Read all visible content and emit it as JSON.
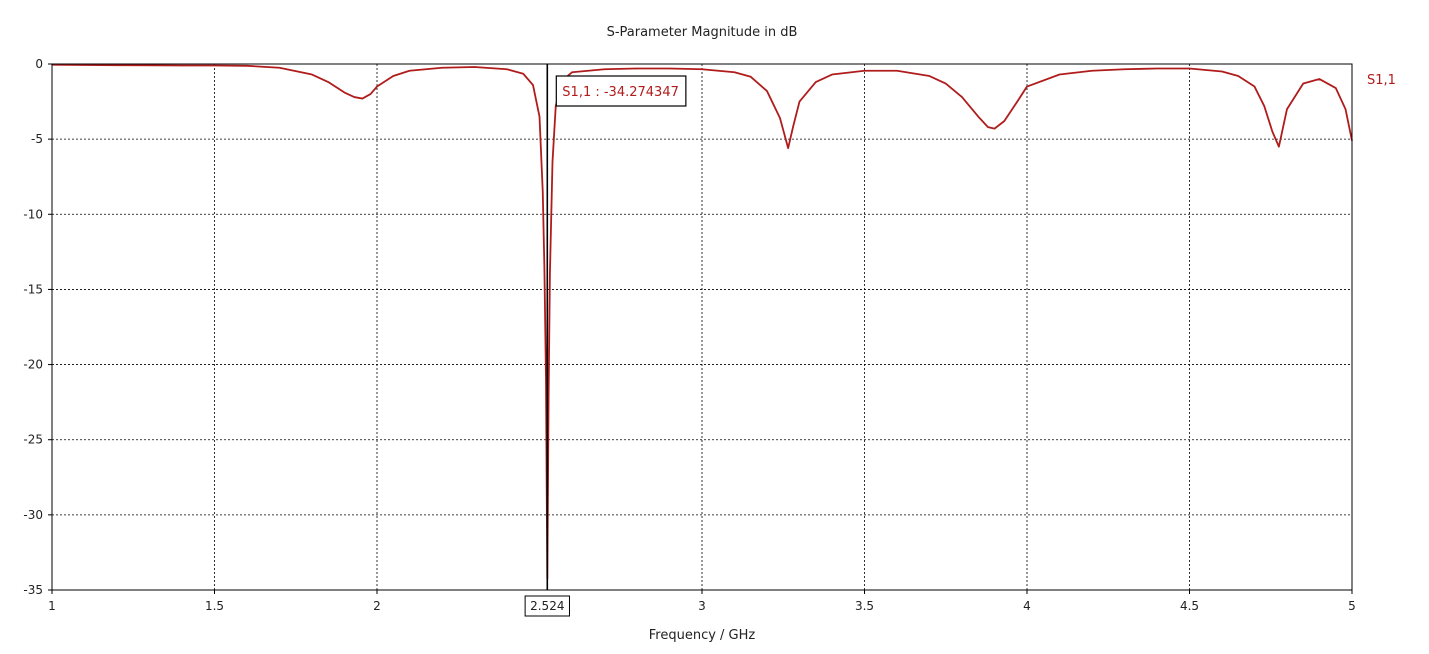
{
  "chart_data": {
    "type": "line",
    "title": "S-Parameter Magnitude in dB",
    "xlabel": "Frequency / GHz",
    "ylabel": "",
    "xlim": [
      1,
      5
    ],
    "ylim": [
      -35,
      0
    ],
    "grid": true,
    "legend": "right",
    "x_ticks": [
      "1",
      "1.5",
      "2",
      "3",
      "3.5",
      "4",
      "4.5",
      "5"
    ],
    "x_tick_values": [
      1,
      1.5,
      2,
      3,
      3.5,
      4,
      4.5,
      5
    ],
    "y_ticks": [
      "0",
      "-5",
      "-10",
      "-15",
      "-20",
      "-25",
      "-30",
      "-35"
    ],
    "y_tick_values": [
      0,
      -5,
      -10,
      -15,
      -20,
      -25,
      -30,
      -35
    ],
    "marker": {
      "x": 2.524,
      "x_label": "2.524",
      "label": "S1,1 : -34.274347"
    },
    "series": [
      {
        "name": "S1,1",
        "color": "#b01c1c",
        "x": [
          1.0,
          1.2,
          1.4,
          1.5,
          1.6,
          1.7,
          1.8,
          1.85,
          1.9,
          1.93,
          1.955,
          1.98,
          2.0,
          2.05,
          2.1,
          2.2,
          2.3,
          2.4,
          2.45,
          2.48,
          2.5,
          2.51,
          2.515,
          2.52,
          2.524,
          2.528,
          2.532,
          2.54,
          2.55,
          2.57,
          2.6,
          2.7,
          2.8,
          2.9,
          3.0,
          3.1,
          3.15,
          3.2,
          3.24,
          3.265,
          3.28,
          3.3,
          3.35,
          3.4,
          3.5,
          3.6,
          3.7,
          3.75,
          3.8,
          3.85,
          3.88,
          3.9,
          3.93,
          3.97,
          4.0,
          4.1,
          4.2,
          4.3,
          4.4,
          4.5,
          4.6,
          4.65,
          4.7,
          4.73,
          4.755,
          4.775,
          4.8,
          4.85,
          4.9,
          4.95,
          4.98,
          5.0
        ],
        "y": [
          -0.05,
          -0.08,
          -0.1,
          -0.1,
          -0.12,
          -0.25,
          -0.7,
          -1.2,
          -1.9,
          -2.2,
          -2.3,
          -2.0,
          -1.5,
          -0.8,
          -0.45,
          -0.25,
          -0.2,
          -0.35,
          -0.65,
          -1.4,
          -3.5,
          -8.5,
          -13.5,
          -21.0,
          -34.27,
          -22.0,
          -14.0,
          -6.5,
          -2.8,
          -1.1,
          -0.55,
          -0.35,
          -0.3,
          -0.3,
          -0.35,
          -0.55,
          -0.85,
          -1.8,
          -3.6,
          -5.6,
          -4.2,
          -2.5,
          -1.2,
          -0.7,
          -0.45,
          -0.45,
          -0.8,
          -1.3,
          -2.2,
          -3.5,
          -4.2,
          -4.3,
          -3.8,
          -2.5,
          -1.5,
          -0.7,
          -0.45,
          -0.35,
          -0.3,
          -0.3,
          -0.5,
          -0.8,
          -1.5,
          -2.8,
          -4.5,
          -5.5,
          -3.0,
          -1.3,
          -1.0,
          -1.6,
          -3.0,
          -5.1
        ]
      }
    ]
  }
}
